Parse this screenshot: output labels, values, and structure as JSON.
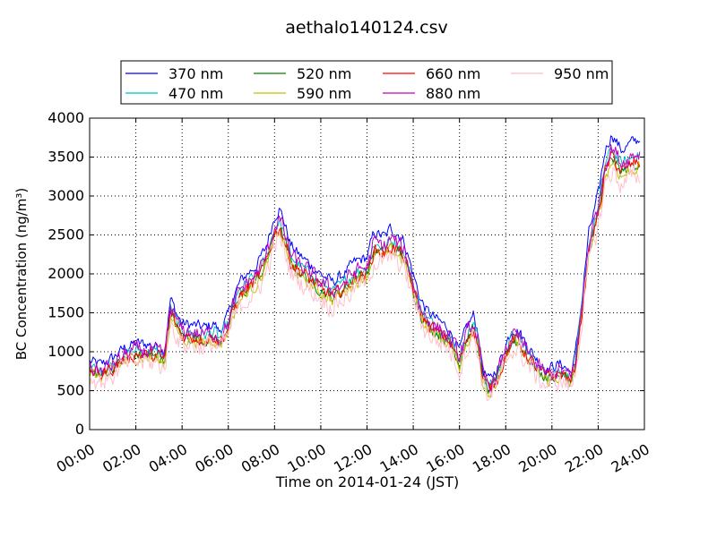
{
  "chart_data": {
    "type": "line",
    "title": "aethalo140124.csv",
    "xlabel": "Time on 2014-01-24 (JST)",
    "ylabel": "BC Concentration (ng/m³)",
    "x_unit": "hours",
    "xlim": [
      0,
      24
    ],
    "ylim": [
      0,
      4000
    ],
    "grid": true,
    "legend_position": "top-center",
    "x_tick_labels": [
      "00:00",
      "02:00",
      "04:00",
      "06:00",
      "08:00",
      "10:00",
      "12:00",
      "14:00",
      "16:00",
      "18:00",
      "20:00",
      "22:00",
      "24:00"
    ],
    "y_tick_labels": [
      "0",
      "500",
      "1000",
      "1500",
      "2000",
      "2500",
      "3000",
      "3500",
      "4000"
    ],
    "base_profile": {
      "hours": [
        0,
        0.5,
        1,
        1.5,
        2,
        2.5,
        3,
        3.2,
        3.3,
        3.5,
        3.8,
        4,
        4.5,
        5,
        5.4,
        5.6,
        6,
        6.2,
        6.5,
        6.8,
        7,
        7.2,
        7.4,
        7.6,
        8,
        8.2,
        8.4,
        8.7,
        9,
        9.4,
        10,
        10.5,
        11,
        11.5,
        12,
        12.3,
        12.8,
        13,
        13.3,
        13.6,
        14,
        14.3,
        14.6,
        15,
        15.5,
        15.8,
        16,
        16.3,
        16.6,
        16.8,
        17,
        17.3,
        17.7,
        18,
        18.3,
        18.6,
        19,
        19.4,
        19.8,
        20.2,
        20.5,
        20.8,
        21,
        21.3,
        21.6,
        22,
        22.3,
        22.6,
        23,
        23.5,
        24
      ],
      "values": [
        740,
        700,
        780,
        900,
        960,
        950,
        920,
        880,
        1000,
        1500,
        1300,
        1200,
        1180,
        1150,
        1200,
        1100,
        1300,
        1500,
        1700,
        1800,
        1850,
        1900,
        2000,
        2100,
        2500,
        2600,
        2450,
        2150,
        2050,
        1950,
        1800,
        1700,
        1800,
        1950,
        2000,
        2300,
        2250,
        2350,
        2300,
        2200,
        1800,
        1500,
        1350,
        1250,
        1150,
        1000,
        850,
        1150,
        1300,
        1100,
        650,
        500,
        700,
        950,
        1150,
        1100,
        900,
        750,
        650,
        700,
        700,
        600,
        800,
        1500,
        2300,
        2750,
        3300,
        3500,
        3300,
        3400,
        3450
      ]
    },
    "series": [
      {
        "name": "370 nm",
        "color": "#0000ff",
        "offset": 90,
        "scale": 1.06,
        "noise": 120
      },
      {
        "name": "470 nm",
        "color": "#00bfbf",
        "offset": 40,
        "scale": 1.02,
        "noise": 120
      },
      {
        "name": "520 nm",
        "color": "#008000",
        "offset": 0,
        "scale": 1.0,
        "noise": 120
      },
      {
        "name": "590 nm",
        "color": "#bfbf00",
        "offset": -20,
        "scale": 0.99,
        "noise": 130
      },
      {
        "name": "660 nm",
        "color": "#ff0000",
        "offset": 10,
        "scale": 1.0,
        "noise": 140
      },
      {
        "name": "880 nm",
        "color": "#bf00bf",
        "offset": 30,
        "scale": 1.03,
        "noise": 170
      },
      {
        "name": "950 nm",
        "color": "#ffc0cb",
        "offset": -60,
        "scale": 0.97,
        "noise": 220
      }
    ]
  }
}
